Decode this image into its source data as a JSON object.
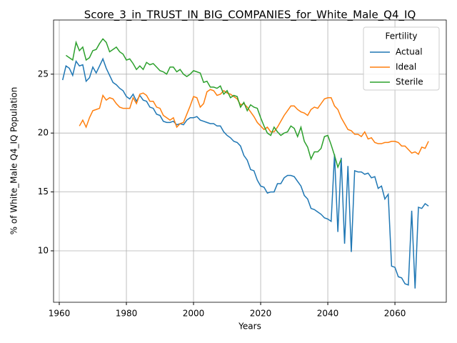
{
  "chart_data": {
    "type": "line",
    "title": "Score_3_in_TRUST_IN_BIG_COMPANIES_for_White_Male_Q4_IQ",
    "xlabel": "Years",
    "ylabel": "% of White_Male Q4_IQ Population",
    "legend_title": "Fertility",
    "legend_loc": "upper right",
    "grid": true,
    "xlim": [
      1958.3,
      2075.3
    ],
    "ylim": [
      5.63,
      29.6
    ],
    "xticks": [
      1960,
      1980,
      2000,
      2020,
      2040,
      2060
    ],
    "yticks": [
      10,
      15,
      20,
      25
    ],
    "x": [
      1961,
      1962,
      1963,
      1964,
      1965,
      1966,
      1967,
      1968,
      1969,
      1970,
      1971,
      1972,
      1973,
      1974,
      1975,
      1976,
      1977,
      1978,
      1979,
      1980,
      1981,
      1982,
      1983,
      1984,
      1985,
      1986,
      1987,
      1988,
      1989,
      1990,
      1991,
      1992,
      1993,
      1994,
      1995,
      1996,
      1997,
      1998,
      1999,
      2000,
      2001,
      2002,
      2003,
      2004,
      2005,
      2006,
      2007,
      2008,
      2009,
      2010,
      2011,
      2012,
      2013,
      2014,
      2015,
      2016,
      2017,
      2018,
      2019,
      2020,
      2021,
      2022,
      2023,
      2024,
      2025,
      2026,
      2027,
      2028,
      2029,
      2030,
      2031,
      2032,
      2033,
      2034,
      2035,
      2036,
      2037,
      2038,
      2039,
      2040,
      2041,
      2042,
      2043,
      2044,
      2045,
      2046,
      2047,
      2048,
      2049,
      2050,
      2051,
      2052,
      2053,
      2054,
      2055,
      2056,
      2057,
      2058,
      2059,
      2060,
      2061,
      2062,
      2063,
      2064,
      2065,
      2066,
      2067,
      2068,
      2069,
      2070
    ],
    "series": [
      {
        "name": "Actual",
        "color": "#1f77b4",
        "values": [
          24.5,
          25.7,
          25.5,
          24.9,
          26.1,
          25.7,
          25.8,
          24.4,
          24.7,
          25.6,
          25.1,
          25.7,
          26.3,
          25.5,
          24.9,
          24.3,
          24.1,
          23.8,
          23.6,
          23.1,
          22.9,
          23.3,
          22.7,
          23.2,
          22.8,
          22.7,
          22.2,
          22.1,
          21.6,
          21.5,
          21.0,
          20.9,
          20.9,
          21.0,
          20.7,
          20.8,
          20.7,
          21.1,
          21.3,
          21.3,
          21.4,
          21.1,
          21.0,
          20.9,
          20.8,
          20.8,
          20.6,
          20.6,
          20.1,
          19.8,
          19.6,
          19.3,
          19.2,
          18.9,
          18.1,
          17.7,
          16.9,
          16.8,
          16.0,
          15.5,
          15.4,
          14.9,
          15.0,
          15.0,
          15.7,
          15.7,
          16.2,
          16.4,
          16.4,
          16.3,
          15.9,
          15.5,
          14.7,
          14.4,
          13.6,
          13.5,
          13.3,
          13.1,
          12.8,
          12.7,
          12.5,
          18.2,
          11.6,
          17.9,
          10.6,
          17.2,
          9.9,
          16.8,
          16.7,
          16.7,
          16.5,
          16.6,
          16.2,
          16.3,
          15.3,
          15.5,
          14.4,
          14.8,
          8.7,
          8.6,
          7.8,
          7.7,
          7.2,
          7.1,
          13.4,
          6.8,
          13.7,
          13.6,
          14.0,
          13.8
        ]
      },
      {
        "name": "Ideal",
        "color": "#ff7f0e",
        "values": [
          null,
          null,
          null,
          null,
          null,
          20.6,
          21.1,
          20.5,
          21.3,
          21.9,
          22.0,
          22.1,
          23.2,
          22.8,
          23.0,
          22.9,
          22.5,
          22.2,
          22.1,
          22.1,
          22.1,
          23.0,
          22.5,
          23.3,
          23.4,
          23.2,
          22.7,
          22.7,
          22.2,
          22.1,
          21.5,
          21.3,
          21.1,
          21.3,
          20.5,
          20.8,
          20.9,
          21.6,
          22.3,
          23.1,
          23.0,
          22.2,
          22.5,
          23.5,
          23.7,
          23.6,
          23.2,
          23.3,
          23.6,
          23.4,
          23.3,
          23.1,
          22.9,
          22.4,
          22.5,
          22.2,
          21.8,
          21.4,
          20.9,
          20.6,
          20.3,
          20.5,
          20.1,
          20.1,
          20.5,
          21.0,
          21.5,
          21.9,
          22.3,
          22.3,
          22.0,
          21.8,
          21.7,
          21.5,
          22.0,
          22.2,
          22.1,
          22.5,
          22.9,
          23.0,
          23.0,
          22.3,
          22.0,
          21.3,
          20.8,
          20.3,
          20.2,
          19.9,
          19.9,
          19.7,
          20.1,
          19.5,
          19.6,
          19.2,
          19.1,
          19.1,
          19.2,
          19.2,
          19.3,
          19.3,
          19.2,
          18.9,
          18.9,
          18.6,
          18.3,
          18.4,
          18.2,
          18.8,
          18.7,
          19.3
        ]
      },
      {
        "name": "Sterile",
        "color": "#2ca02c",
        "values": [
          null,
          26.6,
          26.4,
          26.2,
          27.7,
          27.0,
          27.3,
          26.2,
          26.4,
          27.0,
          27.1,
          27.6,
          28.0,
          27.7,
          26.9,
          27.1,
          27.3,
          26.9,
          26.7,
          26.2,
          26.3,
          25.9,
          25.4,
          25.7,
          25.4,
          26.0,
          25.8,
          25.9,
          25.6,
          25.3,
          25.2,
          25.0,
          25.6,
          25.6,
          25.2,
          25.4,
          25.0,
          24.8,
          25.0,
          25.3,
          25.2,
          25.1,
          24.3,
          24.4,
          23.9,
          23.9,
          23.8,
          24.0,
          23.3,
          23.6,
          23.0,
          23.2,
          23.1,
          22.2,
          22.6,
          21.9,
          22.4,
          22.2,
          22.1,
          21.3,
          20.6,
          20.0,
          19.8,
          20.5,
          20.1,
          19.8,
          20.0,
          20.1,
          20.6,
          20.4,
          19.7,
          20.5,
          19.3,
          18.8,
          17.8,
          18.4,
          18.4,
          18.7,
          19.7,
          19.8,
          19.0,
          18.1,
          17.1,
          17.8,
          null,
          null,
          null,
          null,
          null,
          null,
          null,
          null,
          null,
          null,
          null,
          null,
          null,
          null,
          null,
          null,
          null,
          null,
          null,
          null,
          null,
          null,
          null,
          null,
          null,
          null
        ]
      }
    ]
  }
}
